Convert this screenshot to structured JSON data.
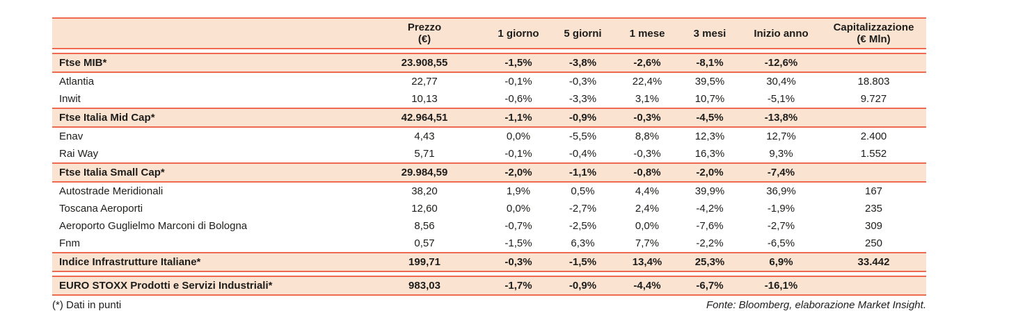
{
  "colors": {
    "rule_red": "#ed6a51",
    "band_peach": "#fbe3d1",
    "text": "#1d1d1b"
  },
  "table": {
    "header": {
      "name": "",
      "prezzo": {
        "line1": "Prezzo",
        "line2": "(€)"
      },
      "d1": "1 giorno",
      "d5": "5 giorni",
      "m1": "1 mese",
      "m3": "3 mesi",
      "ytd": "Inizio anno",
      "cap": {
        "line1": "Capitalizzazione",
        "line2": "(€ Mln)"
      }
    },
    "rows": [
      {
        "type": "index",
        "name": "Ftse MIB*",
        "prezzo": "23.908,55",
        "d1": "-1,5%",
        "d5": "-3,8%",
        "m1": "-2,6%",
        "m3": "-8,1%",
        "ytd": "-12,6%",
        "cap": ""
      },
      {
        "type": "stock",
        "name": "Atlantia",
        "prezzo": "22,77",
        "d1": "-0,1%",
        "d5": "-0,3%",
        "m1": "22,4%",
        "m3": "39,5%",
        "ytd": "30,4%",
        "cap": "18.803"
      },
      {
        "type": "stock",
        "name": "Inwit",
        "prezzo": "10,13",
        "d1": "-0,6%",
        "d5": "-3,3%",
        "m1": "3,1%",
        "m3": "10,7%",
        "ytd": "-5,1%",
        "cap": "9.727"
      },
      {
        "type": "index",
        "name": "Ftse Italia Mid Cap*",
        "prezzo": "42.964,51",
        "d1": "-1,1%",
        "d5": "-0,9%",
        "m1": "-0,3%",
        "m3": "-4,5%",
        "ytd": "-13,8%",
        "cap": ""
      },
      {
        "type": "stock",
        "name": "Enav",
        "prezzo": "4,43",
        "d1": "0,0%",
        "d5": "-5,5%",
        "m1": "8,8%",
        "m3": "12,3%",
        "ytd": "12,7%",
        "cap": "2.400"
      },
      {
        "type": "stock",
        "name": "Rai Way",
        "prezzo": "5,71",
        "d1": "-0,1%",
        "d5": "-0,4%",
        "m1": "-0,3%",
        "m3": "16,3%",
        "ytd": "9,3%",
        "cap": "1.552"
      },
      {
        "type": "index",
        "name": "Ftse Italia Small Cap*",
        "prezzo": "29.984,59",
        "d1": "-2,0%",
        "d5": "-1,1%",
        "m1": "-0,8%",
        "m3": "-2,0%",
        "ytd": "-7,4%",
        "cap": ""
      },
      {
        "type": "stock",
        "name": "Autostrade Meridionali",
        "prezzo": "38,20",
        "d1": "1,9%",
        "d5": "0,5%",
        "m1": "4,4%",
        "m3": "39,9%",
        "ytd": "36,9%",
        "cap": "167"
      },
      {
        "type": "stock",
        "name": "Toscana Aeroporti",
        "prezzo": "12,60",
        "d1": "0,0%",
        "d5": "-2,7%",
        "m1": "2,4%",
        "m3": "-4,2%",
        "ytd": "-1,9%",
        "cap": "235"
      },
      {
        "type": "stock",
        "name": "Aeroporto Guglielmo Marconi di Bologna",
        "prezzo": "8,56",
        "d1": "-0,7%",
        "d5": "-2,5%",
        "m1": "0,0%",
        "m3": "-7,6%",
        "ytd": "-2,7%",
        "cap": "309"
      },
      {
        "type": "stock",
        "name": "Fnm",
        "prezzo": "0,57",
        "d1": "-1,5%",
        "d5": "6,3%",
        "m1": "7,7%",
        "m3": "-2,2%",
        "ytd": "-6,5%",
        "cap": "250"
      },
      {
        "type": "index",
        "name": "Indice Infrastrutture Italiane*",
        "prezzo": "199,71",
        "d1": "-0,3%",
        "d5": "-1,5%",
        "m1": "13,4%",
        "m3": "25,3%",
        "ytd": "6,9%",
        "cap": "33.442"
      }
    ],
    "euro_stoxx_row": {
      "type": "index",
      "name": "EURO STOXX Prodotti e Servizi Industriali*",
      "prezzo": "983,03",
      "d1": "-1,7%",
      "d5": "-0,9%",
      "m1": "-4,4%",
      "m3": "-6,7%",
      "ytd": "-16,1%",
      "cap": ""
    }
  },
  "footer": {
    "note": "(*) Dati in punti",
    "source": "Fonte: Bloomberg, elaborazione Market Insight."
  }
}
